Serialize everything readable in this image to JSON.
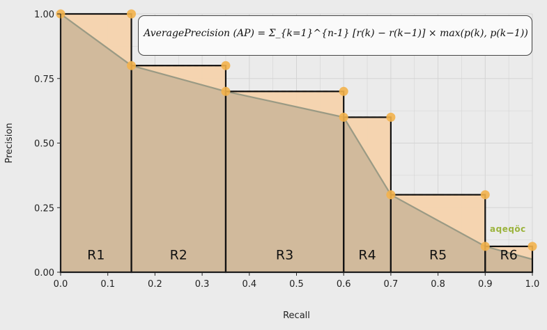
{
  "chart_data": {
    "type": "area",
    "xlabel": "Recall",
    "ylabel": "Precision",
    "xlim": [
      0.0,
      1.0
    ],
    "ylim": [
      0.0,
      1.0
    ],
    "x_ticks": [
      "0.0",
      "0.1",
      "0.2",
      "0.3",
      "0.4",
      "0.5",
      "0.6",
      "0.7",
      "0.8",
      "0.9",
      "1.0"
    ],
    "y_ticks": [
      "0.00",
      "0.25",
      "0.50",
      "0.75",
      "1.00"
    ],
    "grid": true,
    "pr_curve": {
      "x": [
        0.0,
        0.15,
        0.35,
        0.6,
        0.7,
        0.9,
        1.0
      ],
      "y": [
        1.0,
        0.8,
        0.7,
        0.6,
        0.3,
        0.1,
        0.05
      ]
    },
    "interpolated_points": {
      "x": [
        0.0,
        0.15,
        0.15,
        0.35,
        0.35,
        0.6,
        0.6,
        0.7,
        0.7,
        0.9,
        0.9,
        1.0
      ],
      "y": [
        1.0,
        1.0,
        0.8,
        0.8,
        0.7,
        0.7,
        0.6,
        0.6,
        0.3,
        0.3,
        0.1,
        0.1
      ]
    },
    "regions": [
      {
        "label": "R1",
        "x_start": 0.0,
        "x_end": 0.15,
        "height": 1.0
      },
      {
        "label": "R2",
        "x_start": 0.15,
        "x_end": 0.35,
        "height": 0.8
      },
      {
        "label": "R3",
        "x_start": 0.35,
        "x_end": 0.6,
        "height": 0.7
      },
      {
        "label": "R4",
        "x_start": 0.6,
        "x_end": 0.7,
        "height": 0.6
      },
      {
        "label": "R5",
        "x_start": 0.7,
        "x_end": 0.9,
        "height": 0.3
      },
      {
        "label": "R6",
        "x_start": 0.9,
        "x_end": 1.0,
        "height": 0.1
      }
    ],
    "annotation": "AveragePrecision (AP) = Σ_{k=1}^{n-1} [r(k) − r(k−1)] × max(p(k), p(k−1))",
    "colors": {
      "area_fill": "#cdb79a",
      "step_fill": "#f5d3ad",
      "curve_line": "#9a9a84",
      "step_line": "#111111",
      "marker": "#f3b34c",
      "grid": "#d4d4d4"
    }
  },
  "watermark": "aqeqöc"
}
